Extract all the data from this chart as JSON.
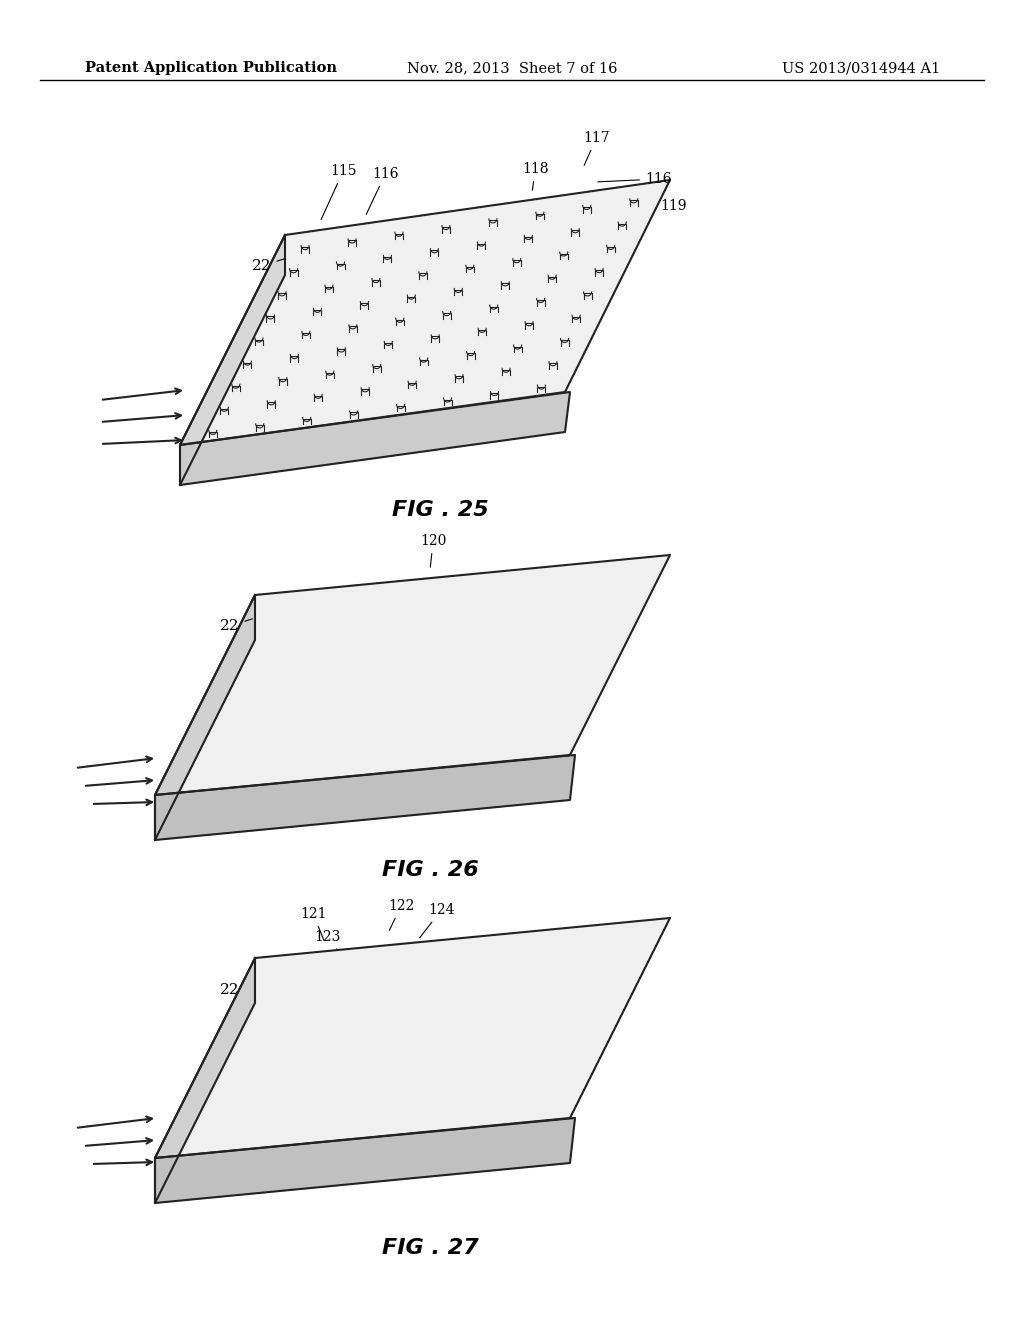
{
  "background_color": "#ffffff",
  "header_left": "Patent Application Publication",
  "header_center": "Nov. 28, 2013  Sheet 7 of 16",
  "header_right": "US 2013/0314944 A1",
  "header_fontsize": 10.5,
  "fig25_label": "FIG . 25",
  "fig26_label": "FIG . 26",
  "fig27_label": "FIG . 27",
  "fig_label_fontsize": 16,
  "annotation_fontsize": 10,
  "text_color": "#000000"
}
